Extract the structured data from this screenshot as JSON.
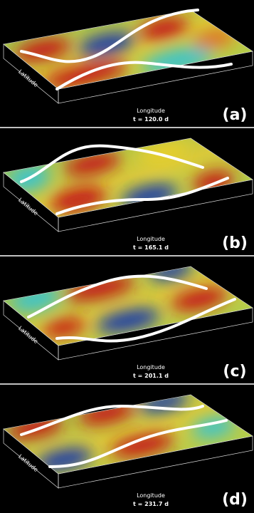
{
  "panels": [
    {
      "tag": "(a)",
      "time": "t = 120.0 d",
      "latitude": "Latitude",
      "longitude": "Longitude"
    },
    {
      "tag": "(b)",
      "time": "t = 165.1 d",
      "latitude": "Latitude",
      "longitude": "Longitude"
    },
    {
      "tag": "(c)",
      "time": "t = 201.1 d",
      "latitude": "Latitude",
      "longitude": "Longitude"
    },
    {
      "tag": "(d)",
      "time": "t = 231.7 d",
      "latitude": "Latitude",
      "longitude": "Longitude"
    }
  ]
}
